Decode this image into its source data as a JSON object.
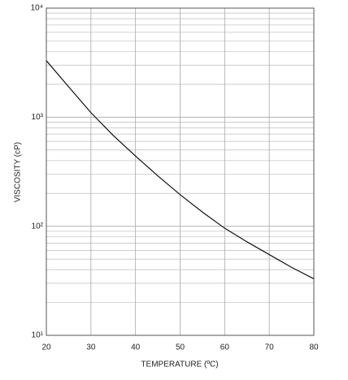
{
  "chart_data": {
    "type": "line",
    "x_label": "TEMPERATURE (ºC)",
    "y_label": "VISCOSITY (cP)",
    "x": [
      20,
      25,
      30,
      35,
      40,
      45,
      50,
      55,
      60,
      65,
      70,
      75,
      80
    ],
    "series": [
      {
        "name": null,
        "color": "#111111",
        "values": [
          3300,
          1900,
          1100,
          680,
          440,
          290,
          195,
          135,
          96,
          72,
          55,
          42,
          33
        ]
      }
    ],
    "xlim": [
      20,
      80
    ],
    "xticks": [
      20,
      30,
      40,
      50,
      60,
      70,
      80
    ],
    "ylim": [
      10,
      10000
    ],
    "y_scale": "log",
    "yticks": [
      {
        "value": 10,
        "label": "10¹"
      },
      {
        "value": 100,
        "label": "10²"
      },
      {
        "value": 1000,
        "label": "10³"
      },
      {
        "value": 10000,
        "label": "10⁴"
      }
    ],
    "minor_yticks": [
      20,
      30,
      40,
      50,
      60,
      70,
      80,
      90,
      200,
      300,
      400,
      500,
      600,
      700,
      800,
      900,
      2000,
      3000,
      4000,
      5000,
      6000,
      7000,
      8000,
      9000
    ],
    "grid": true
  }
}
